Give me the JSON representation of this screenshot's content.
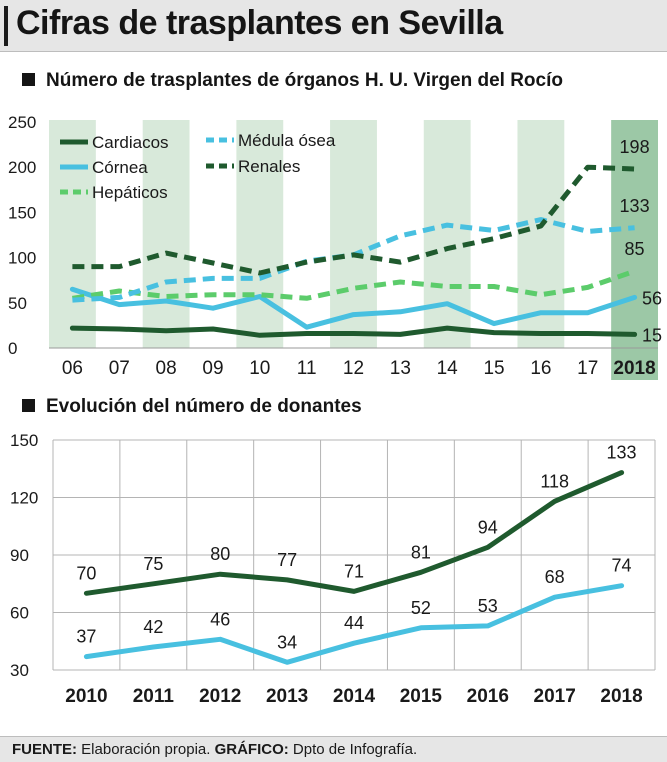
{
  "header": {
    "title": "Cifras de trasplantes en Sevilla"
  },
  "footer": {
    "source_label": "FUENTE:",
    "source_text": " Elaboración propia. ",
    "graphic_label": "GRÁFICO:",
    "graphic_text": " Dpto de Infografía."
  },
  "colors": {
    "dark_green": "#1f5a2e",
    "light_green": "#5ccc6b",
    "light_blue": "#48c0e0",
    "shade": "#d8e9da",
    "shade_last": "#9cc8a6"
  },
  "chart_data": [
    {
      "type": "line",
      "title": "Número de trasplantes de órganos H. U. Virgen del Rocío",
      "categories": [
        "06",
        "07",
        "08",
        "09",
        "10",
        "11",
        "12",
        "13",
        "14",
        "15",
        "16",
        "17",
        "2018"
      ],
      "ylim": [
        0,
        250
      ],
      "yticks": [
        0,
        50,
        100,
        150,
        200,
        250
      ],
      "grid": false,
      "legend_position": "top-left",
      "shaded_bands": "alternating columns, last column highlighted",
      "series": [
        {
          "name": "Cardiacos",
          "color": "#1f5a2e",
          "dashed": false,
          "values": [
            22,
            21,
            19,
            21,
            14,
            16,
            16,
            15,
            22,
            17,
            16,
            16,
            15
          ],
          "end_label": "15"
        },
        {
          "name": "Córnea",
          "color": "#48c0e0",
          "dashed": false,
          "values": [
            65,
            48,
            52,
            44,
            57,
            23,
            37,
            40,
            49,
            27,
            39,
            39,
            56
          ],
          "end_label": "56"
        },
        {
          "name": "Hepáticos",
          "color": "#5ccc6b",
          "dashed": true,
          "values": [
            55,
            63,
            57,
            59,
            59,
            55,
            66,
            73,
            68,
            68,
            59,
            67,
            85
          ],
          "end_label": "85"
        },
        {
          "name": "Médula ósea",
          "color": "#48c0e0",
          "dashed": true,
          "values": [
            53,
            56,
            73,
            77,
            77,
            96,
            103,
            124,
            136,
            130,
            142,
            129,
            133
          ],
          "end_label": "133"
        },
        {
          "name": "Renales",
          "color": "#1f5a2e",
          "dashed": true,
          "values": [
            90,
            90,
            105,
            94,
            83,
            95,
            103,
            95,
            110,
            121,
            135,
            200,
            198
          ],
          "end_label": "198"
        }
      ]
    },
    {
      "type": "line",
      "title": "Evolución del número de donantes",
      "categories": [
        "2010",
        "2011",
        "2012",
        "2013",
        "2014",
        "2015",
        "2016",
        "2017",
        "2018"
      ],
      "ylim": [
        30,
        150
      ],
      "yticks": [
        30,
        60,
        90,
        120,
        150
      ],
      "grid": true,
      "series": [
        {
          "color": "#1f5a2e",
          "values": [
            70,
            75,
            80,
            77,
            71,
            81,
            94,
            118,
            133
          ]
        },
        {
          "color": "#48c0e0",
          "values": [
            37,
            42,
            46,
            34,
            44,
            52,
            53,
            68,
            74
          ]
        }
      ]
    }
  ]
}
